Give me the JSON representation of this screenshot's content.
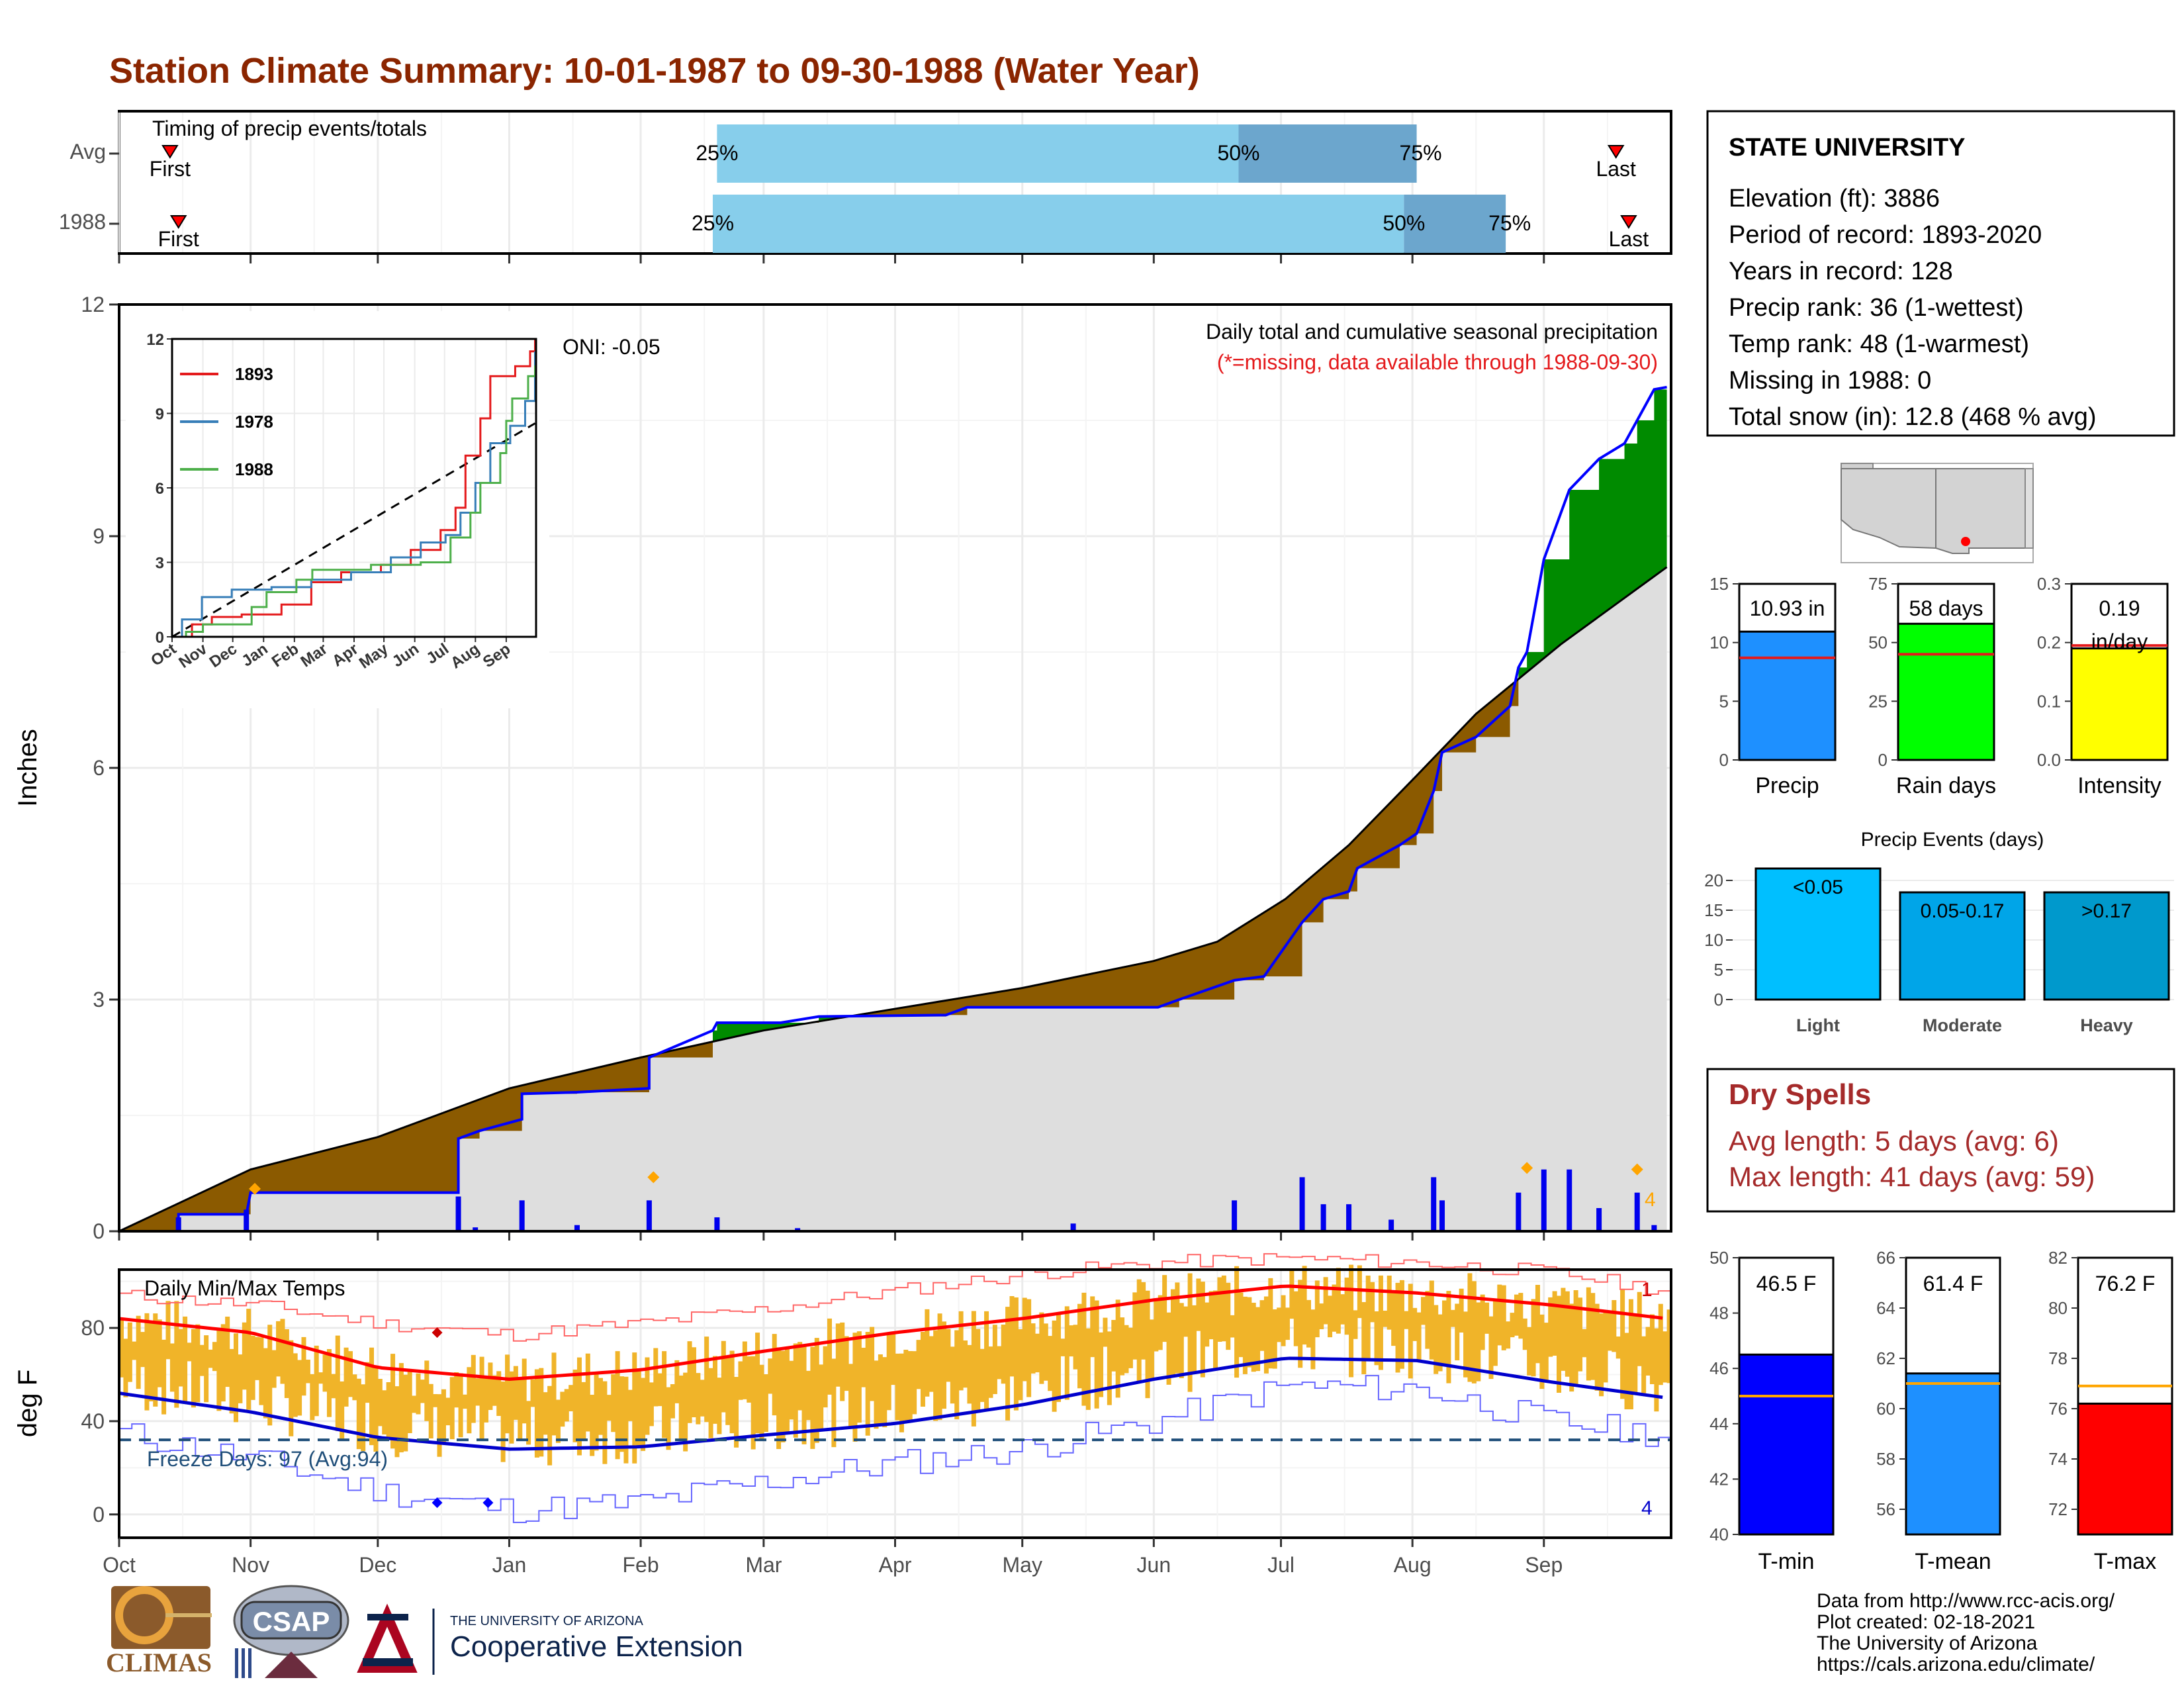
{
  "title": "Station Climate Summary: 10-01-1987 to 09-30-1988 (Water Year)",
  "colors": {
    "title": "#8B2500",
    "light_blue": "#87CEEB",
    "mid_blue": "#6CA6CD",
    "brown": "#8B5A00",
    "green": "#008B00",
    "grey_fill": "#DEDEDE",
    "cum_line": "#0000FF",
    "orange": "#FFA500",
    "precip_bar": "#1E90FF",
    "rain_days_bar": "#00FF00",
    "intensity_bar": "#FFFF00",
    "tmin_bar": "#0000FF",
    "tmean_bar": "#1E90FF",
    "tmax_bar": "#FF0000",
    "temp_bars": "#F0B429",
    "dry_spell": "#A52A2A"
  },
  "months": [
    "Oct",
    "Nov",
    "Dec",
    "Jan",
    "Feb",
    "Mar",
    "Apr",
    "May",
    "Jun",
    "Jul",
    "Aug",
    "Sep"
  ],
  "timing": {
    "title": "Timing of precip events/totals",
    "rows": [
      {
        "label": "Avg",
        "first_label": "First",
        "last_label": "Last",
        "first_doy": 12,
        "last_doy": 353,
        "p25": 141,
        "p50": 264,
        "p75": 306,
        "p25_label": "25%",
        "p50_label": "50%",
        "p75_label": "75%"
      },
      {
        "label": "1988",
        "first_label": "First",
        "last_label": "Last",
        "first_doy": 14,
        "last_doy": 356,
        "p25": 140,
        "p50": 303,
        "p75": 327,
        "p25_label": "25%",
        "p50_label": "50%",
        "p75_label": "75%"
      }
    ]
  },
  "chart_data": [
    {
      "type": "area",
      "name": "cumulative-precip",
      "title": "Daily total and cumulative seasonal precipitation",
      "subtitle": "(*=missing, data available through 1988-09-30)",
      "ylabel": "Inches",
      "ylim": [
        0,
        12
      ],
      "yticks": [
        0,
        3,
        6,
        9,
        12
      ],
      "oni_label": "ONI: -0.05",
      "annotation_count": "4",
      "avg_cumulative": [
        [
          0,
          0
        ],
        [
          31,
          0.8
        ],
        [
          61,
          1.22
        ],
        [
          92,
          1.85
        ],
        [
          123,
          2.25
        ],
        [
          152,
          2.6
        ],
        [
          183,
          2.88
        ],
        [
          213,
          3.15
        ],
        [
          244,
          3.5
        ],
        [
          259,
          3.75
        ],
        [
          275,
          4.3
        ],
        [
          290,
          5.0
        ],
        [
          306,
          5.9
        ],
        [
          320,
          6.7
        ],
        [
          340,
          7.6
        ],
        [
          360,
          8.4
        ],
        [
          365,
          8.6
        ]
      ],
      "cumulative_1988": [
        [
          0,
          0
        ],
        [
          14,
          0
        ],
        [
          14,
          0.22
        ],
        [
          30,
          0.22
        ],
        [
          31,
          0.5
        ],
        [
          80,
          0.5
        ],
        [
          80,
          1.2
        ],
        [
          85,
          1.3
        ],
        [
          95,
          1.45
        ],
        [
          95,
          1.78
        ],
        [
          108,
          1.8
        ],
        [
          125,
          1.85
        ],
        [
          125,
          2.25
        ],
        [
          140,
          2.6
        ],
        [
          141,
          2.7
        ],
        [
          156,
          2.7
        ],
        [
          165,
          2.78
        ],
        [
          195,
          2.8
        ],
        [
          200,
          2.9
        ],
        [
          245,
          2.9
        ],
        [
          250,
          3.0
        ],
        [
          263,
          3.25
        ],
        [
          270,
          3.3
        ],
        [
          279,
          4.0
        ],
        [
          284,
          4.3
        ],
        [
          290,
          4.4
        ],
        [
          292,
          4.7
        ],
        [
          302,
          5.0
        ],
        [
          306,
          5.15
        ],
        [
          310,
          5.7
        ],
        [
          312,
          6.2
        ],
        [
          320,
          6.4
        ],
        [
          328,
          6.8
        ],
        [
          330,
          7.3
        ],
        [
          332,
          7.5
        ],
        [
          336,
          8.7
        ],
        [
          342,
          9.6
        ],
        [
          349,
          10.0
        ],
        [
          355,
          10.2
        ],
        [
          358,
          10.5
        ],
        [
          362,
          10.9
        ],
        [
          365,
          10.93
        ]
      ],
      "daily_bars": [
        [
          14,
          0.18
        ],
        [
          30,
          0.28
        ],
        [
          80,
          0.45
        ],
        [
          84,
          0.05
        ],
        [
          95,
          0.4
        ],
        [
          108,
          0.08
        ],
        [
          125,
          0.4
        ],
        [
          141,
          0.18
        ],
        [
          160,
          0.04
        ],
        [
          225,
          0.1
        ],
        [
          263,
          0.4
        ],
        [
          279,
          0.7
        ],
        [
          284,
          0.35
        ],
        [
          290,
          0.35
        ],
        [
          300,
          0.15
        ],
        [
          310,
          0.7
        ],
        [
          312,
          0.4
        ],
        [
          330,
          0.5
        ],
        [
          336,
          0.8
        ],
        [
          342,
          0.8
        ],
        [
          349,
          0.3
        ],
        [
          358,
          0.5
        ],
        [
          362,
          0.08
        ]
      ],
      "orange_markers": [
        [
          32,
          0.55
        ],
        [
          126,
          0.7
        ],
        [
          332,
          0.82
        ],
        [
          358,
          0.8
        ]
      ]
    },
    {
      "type": "line",
      "name": "inset-cumulative",
      "ylim": [
        0,
        12
      ],
      "yticks": [
        0,
        3,
        6,
        9,
        12
      ],
      "xticks": [
        "Oct",
        "Nov",
        "Dec",
        "Jan",
        "Feb",
        "Mar",
        "Apr",
        "May",
        "Jun",
        "Jul",
        "Aug",
        "Sep"
      ],
      "series": [
        {
          "name": "1893",
          "color": "#E41A1C",
          "values": [
            [
              0,
              0
            ],
            [
              20,
              0.5
            ],
            [
              40,
              0.8
            ],
            [
              70,
              0.9
            ],
            [
              110,
              1.3
            ],
            [
              140,
              2.2
            ],
            [
              170,
              2.6
            ],
            [
              210,
              2.9
            ],
            [
              240,
              3.5
            ],
            [
              270,
              4.3
            ],
            [
              285,
              5.2
            ],
            [
              295,
              7.3
            ],
            [
              310,
              8.8
            ],
            [
              320,
              10.5
            ],
            [
              345,
              10.9
            ],
            [
              360,
              11.5
            ],
            [
              365,
              12.0
            ]
          ]
        },
        {
          "name": "1978",
          "color": "#377EB8",
          "values": [
            [
              0,
              0
            ],
            [
              10,
              0.7
            ],
            [
              30,
              1.6
            ],
            [
              60,
              1.9
            ],
            [
              100,
              2.0
            ],
            [
              140,
              2.3
            ],
            [
              180,
              2.6
            ],
            [
              220,
              3.2
            ],
            [
              250,
              3.8
            ],
            [
              275,
              4.1
            ],
            [
              290,
              5.0
            ],
            [
              305,
              6.2
            ],
            [
              320,
              7.8
            ],
            [
              340,
              8.5
            ],
            [
              355,
              9.5
            ],
            [
              365,
              11.5
            ]
          ]
        },
        {
          "name": "1988",
          "color": "#4DAF4A",
          "values": [
            [
              0,
              0
            ],
            [
              14,
              0.2
            ],
            [
              31,
              0.5
            ],
            [
              80,
              1.2
            ],
            [
              95,
              1.8
            ],
            [
              125,
              2.3
            ],
            [
              141,
              2.7
            ],
            [
              200,
              2.9
            ],
            [
              250,
              3.0
            ],
            [
              280,
              4.0
            ],
            [
              300,
              5.0
            ],
            [
              310,
              6.2
            ],
            [
              330,
              7.4
            ],
            [
              336,
              8.7
            ],
            [
              342,
              9.6
            ],
            [
              358,
              10.5
            ],
            [
              365,
              10.93
            ]
          ]
        }
      ],
      "avg_dashed": [
        [
          0,
          0
        ],
        [
          365,
          8.6
        ]
      ]
    },
    {
      "type": "bar",
      "name": "precip-summary",
      "panels": [
        {
          "label": "Precip",
          "value": 10.93,
          "value_label": "10.93 in",
          "avg": 8.7,
          "ylim": [
            0,
            15
          ],
          "yticks": [
            0,
            5,
            10,
            15
          ]
        },
        {
          "label": "Rain days",
          "value": 58,
          "value_label": "58 days",
          "avg": 45,
          "ylim": [
            0,
            75
          ],
          "yticks": [
            0,
            25,
            50,
            75
          ]
        },
        {
          "label": "Intensity",
          "value": 0.19,
          "value_label": "0.19 in/day",
          "avg": 0.195,
          "ylim": [
            0,
            0.3
          ],
          "yticks": [
            0.0,
            0.1,
            0.2,
            0.3
          ]
        }
      ]
    },
    {
      "type": "bar",
      "name": "precip-events",
      "title": "Precip Events (days)",
      "categories": [
        "Light",
        "Moderate",
        "Heavy"
      ],
      "bin_labels": [
        "<0.05",
        "0.05-0.17",
        ">0.17"
      ],
      "values": [
        22,
        18,
        18
      ],
      "ylim": [
        0,
        22
      ],
      "yticks": [
        0,
        5,
        10,
        15,
        20
      ]
    },
    {
      "type": "bar",
      "name": "temp-summary",
      "panels": [
        {
          "label": "T-min",
          "value": 46.5,
          "value_label": "46.5 F",
          "avg": 45.0,
          "ylim": [
            40,
            50
          ],
          "yticks": [
            40,
            42,
            44,
            46,
            48,
            50
          ]
        },
        {
          "label": "T-mean",
          "value": 61.4,
          "value_label": "61.4 F",
          "avg": 61.0,
          "ylim": [
            55,
            66
          ],
          "yticks": [
            56,
            58,
            60,
            62,
            64,
            66
          ]
        },
        {
          "label": "T-max",
          "value": 76.2,
          "value_label": "76.2 F",
          "avg": 76.9,
          "ylim": [
            71,
            82
          ],
          "yticks": [
            72,
            74,
            76,
            78,
            80,
            82
          ]
        }
      ]
    },
    {
      "type": "line",
      "name": "daily-temps",
      "title": "Daily Min/Max Temps",
      "ylabel": "deg F",
      "ylim": [
        -10,
        105
      ],
      "yticks": [
        0,
        40,
        80
      ],
      "freeze_label": "Freeze Days: 97 (Avg:94)",
      "freeze_line": 32,
      "count_top": "1",
      "count_bottom": "4",
      "avg_max": [
        [
          0,
          84
        ],
        [
          31,
          78
        ],
        [
          61,
          63
        ],
        [
          92,
          58
        ],
        [
          123,
          62
        ],
        [
          152,
          70
        ],
        [
          183,
          78
        ],
        [
          213,
          84
        ],
        [
          244,
          92
        ],
        [
          275,
          98
        ],
        [
          306,
          95
        ],
        [
          337,
          90
        ],
        [
          365,
          84
        ]
      ],
      "avg_min": [
        [
          0,
          52
        ],
        [
          31,
          44
        ],
        [
          61,
          33
        ],
        [
          92,
          28
        ],
        [
          123,
          29
        ],
        [
          152,
          34
        ],
        [
          183,
          39
        ],
        [
          213,
          47
        ],
        [
          244,
          58
        ],
        [
          275,
          67
        ],
        [
          306,
          66
        ],
        [
          337,
          57
        ],
        [
          365,
          50
        ]
      ],
      "rec_max": [
        [
          0,
          94
        ],
        [
          31,
          90
        ],
        [
          61,
          82
        ],
        [
          92,
          77
        ],
        [
          123,
          82
        ],
        [
          152,
          88
        ],
        [
          183,
          96
        ],
        [
          213,
          103
        ],
        [
          244,
          108
        ],
        [
          275,
          110
        ],
        [
          306,
          108
        ],
        [
          337,
          104
        ],
        [
          365,
          96
        ]
      ],
      "rec_min": [
        [
          0,
          35
        ],
        [
          31,
          24
        ],
        [
          61,
          10
        ],
        [
          92,
          2
        ],
        [
          123,
          5
        ],
        [
          152,
          14
        ],
        [
          183,
          22
        ],
        [
          213,
          28
        ],
        [
          244,
          40
        ],
        [
          275,
          55
        ],
        [
          306,
          54
        ],
        [
          337,
          40
        ],
        [
          365,
          34
        ]
      ],
      "markers": [
        {
          "doy": 75,
          "t": 78,
          "color": "#CC0000"
        },
        {
          "doy": 75,
          "t": 5,
          "color": "#0000FF"
        },
        {
          "doy": 87,
          "t": 5,
          "color": "#0000FF"
        }
      ]
    }
  ],
  "station": {
    "name": "STATE UNIVERSITY",
    "lines": [
      "Elevation (ft): 3886",
      "Period of record: 1893-2020",
      "Years in record: 128",
      "Precip rank: 36 (1-wettest)",
      "Temp rank: 48 (1-warmest)",
      "Missing in 1988: 0",
      "Total snow (in): 12.8 (468 % avg)"
    ]
  },
  "dry_spells": {
    "title": "Dry Spells",
    "avg": "Avg length: 5 days (avg: 6)",
    "max": "Max length: 41 days (avg: 59)"
  },
  "footer": {
    "lines": [
      "Data from http://www.rcc-acis.org/",
      "Plot created: 02-18-2021",
      "The University of Arizona",
      "https://cals.arizona.edu/climate/"
    ]
  },
  "logos": {
    "climas": "CLIMAS",
    "csap": "CSAP",
    "ua_small": "THE UNIVERSITY OF ARIZONA",
    "ua_big": "Cooperative Extension"
  }
}
